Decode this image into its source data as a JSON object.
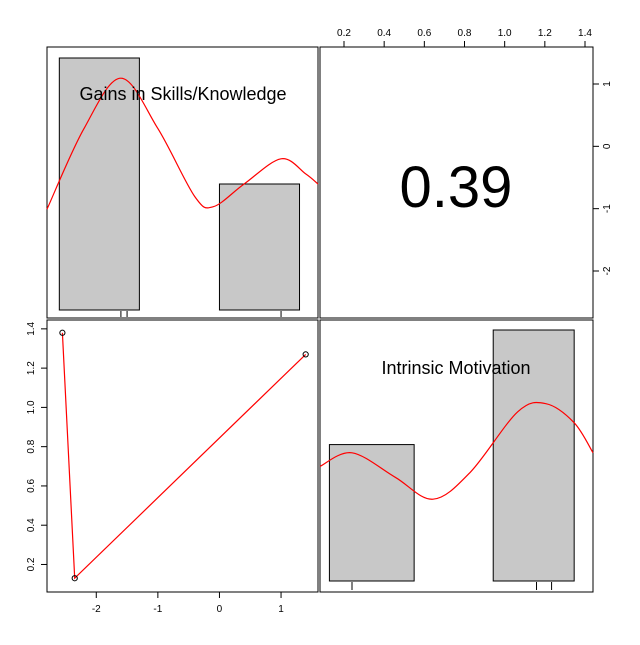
{
  "chart_data": [
    {
      "type": "bar",
      "panel": "top-left diagonal (histogram + density)",
      "title": "Gains in Skills/Knowledge",
      "bins": [
        {
          "x0": -2.6,
          "x1": -1.3,
          "height": 1.0
        },
        {
          "x0": 0.0,
          "x1": 1.3,
          "height": 0.5
        }
      ],
      "rug": [
        -1.6,
        -1.5,
        1.0
      ],
      "density_curve": [
        {
          "x": -2.8,
          "y": 0.4
        },
        {
          "x": -2.2,
          "y": 0.72
        },
        {
          "x": -1.6,
          "y": 0.92
        },
        {
          "x": -1.0,
          "y": 0.72
        },
        {
          "x": -0.4,
          "y": 0.45
        },
        {
          "x": -0.1,
          "y": 0.41
        },
        {
          "x": 0.4,
          "y": 0.5
        },
        {
          "x": 1.0,
          "y": 0.6
        },
        {
          "x": 1.4,
          "y": 0.54
        },
        {
          "x": 1.6,
          "y": 0.5
        }
      ],
      "xlim": [
        -2.8,
        1.6
      ]
    },
    {
      "type": "table",
      "panel": "top-right (correlation)",
      "value": "0.39"
    },
    {
      "type": "scatter",
      "panel": "bottom-left (scatter + fit)",
      "x": [
        -2.55,
        -2.35,
        1.4
      ],
      "y": [
        1.38,
        0.13,
        1.27
      ],
      "xlim": [
        -2.8,
        1.6
      ],
      "ylim": [
        0.07,
        1.44
      ],
      "x_ticks": [
        "-2",
        "-1",
        "0",
        "1"
      ],
      "y_ticks": [
        "0.2",
        "0.4",
        "0.6",
        "0.8",
        "1.0",
        "1.2",
        "1.4"
      ]
    },
    {
      "type": "bar",
      "panel": "bottom-right diagonal (histogram + density)",
      "title": "Intrinsic Motivation",
      "bins": [
        {
          "x0": 0.1,
          "x1": 0.55,
          "height": 0.5
        },
        {
          "x0": 0.97,
          "x1": 1.4,
          "height": 0.92
        }
      ],
      "rug": [
        0.22,
        1.2,
        1.28
      ],
      "density_curve": [
        {
          "x": 0.05,
          "y": 0.42
        },
        {
          "x": 0.22,
          "y": 0.47
        },
        {
          "x": 0.45,
          "y": 0.38
        },
        {
          "x": 0.65,
          "y": 0.3
        },
        {
          "x": 0.85,
          "y": 0.4
        },
        {
          "x": 1.1,
          "y": 0.62
        },
        {
          "x": 1.25,
          "y": 0.65
        },
        {
          "x": 1.4,
          "y": 0.58
        },
        {
          "x": 1.5,
          "y": 0.47
        }
      ],
      "xlim": [
        0.05,
        1.5
      ],
      "top_ticks": [
        "0.2",
        "0.4",
        "0.6",
        "0.8",
        "1.0",
        "1.2",
        "1.4"
      ],
      "right_ticks": [
        "1",
        "0",
        "-1",
        "-2"
      ]
    }
  ],
  "colors": {
    "bar_fill": "#c8c8c8",
    "curve": "#ff0000",
    "frame": "#000000"
  }
}
